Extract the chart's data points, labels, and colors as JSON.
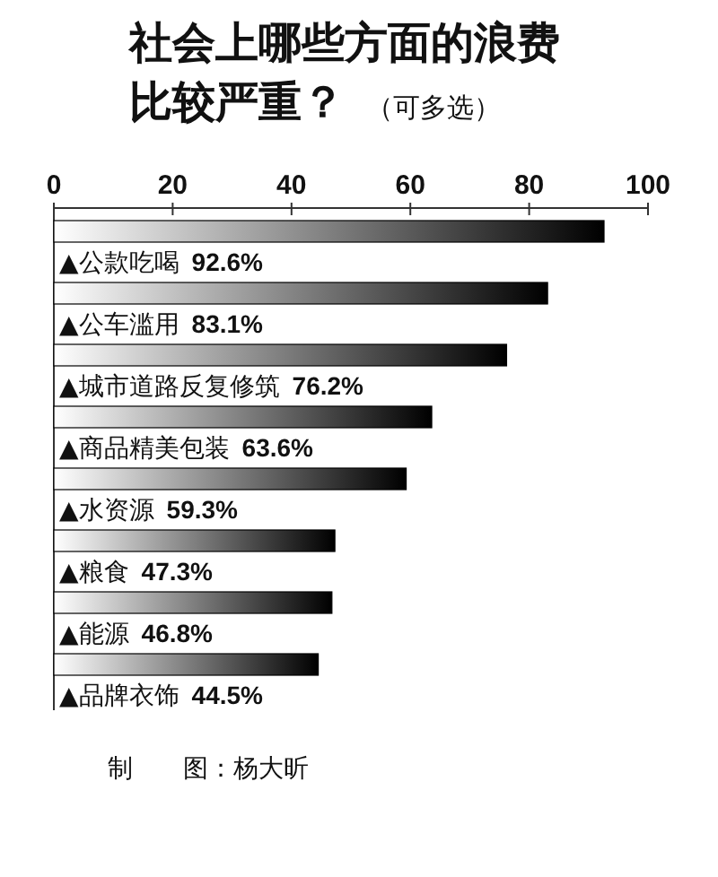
{
  "chart_data": {
    "type": "bar",
    "orientation": "horizontal",
    "title": "社会上哪些方面的浪费比较严重？",
    "subtitle": "（可多选）",
    "categories": [
      "▲公款吃喝",
      "▲公车滥用",
      "▲城市道路反复修筑",
      "▲商品精美包装",
      "▲水资源",
      "▲粮食",
      "▲能源",
      "▲品牌衣饰"
    ],
    "values": [
      92.6,
      83.1,
      76.2,
      63.6,
      59.3,
      47.3,
      46.8,
      44.5
    ],
    "value_labels": [
      "92.6%",
      "83.1%",
      "76.2%",
      "63.6%",
      "59.3%",
      "47.3%",
      "46.8%",
      "44.5%"
    ],
    "color": "#000000",
    "xlim": [
      0,
      100
    ],
    "xticks": [
      0,
      20,
      40,
      60,
      80,
      100
    ],
    "grid": false,
    "annotations": [
      "制　　图：杨大昕"
    ]
  }
}
